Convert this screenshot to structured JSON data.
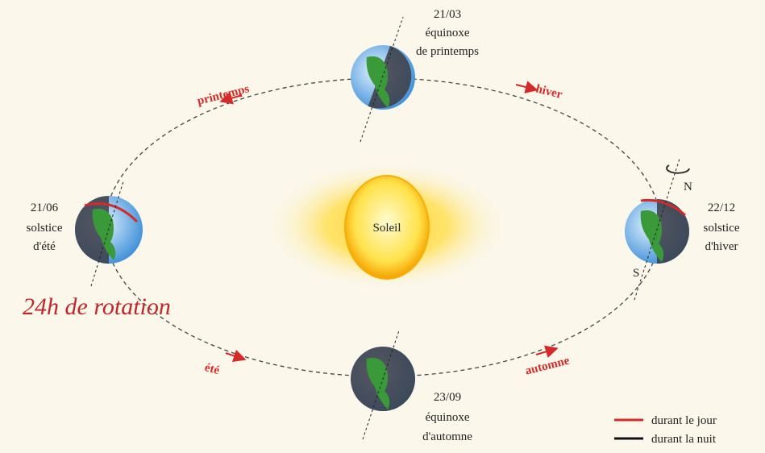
{
  "sun": {
    "label": "Soleil"
  },
  "positions": [
    {
      "date": "21/03",
      "lines": [
        "équinoxe",
        "de printemps"
      ]
    },
    {
      "date": "21/06",
      "lines": [
        "solstice",
        "d'été"
      ]
    },
    {
      "date": "23/09",
      "lines": [
        "équinoxe",
        "d'automne"
      ]
    },
    {
      "date": "22/12",
      "lines": [
        "solstice",
        "d'hiver"
      ]
    }
  ],
  "seasons": [
    "printemps",
    "hiver",
    "été",
    "automne"
  ],
  "poles": {
    "north": "N",
    "south": "S"
  },
  "annotation": "24h de rotation",
  "legend": [
    {
      "label": "durant le jour",
      "color": "#d42a2a"
    },
    {
      "label": "durant la nuit",
      "color": "#111111"
    }
  ]
}
